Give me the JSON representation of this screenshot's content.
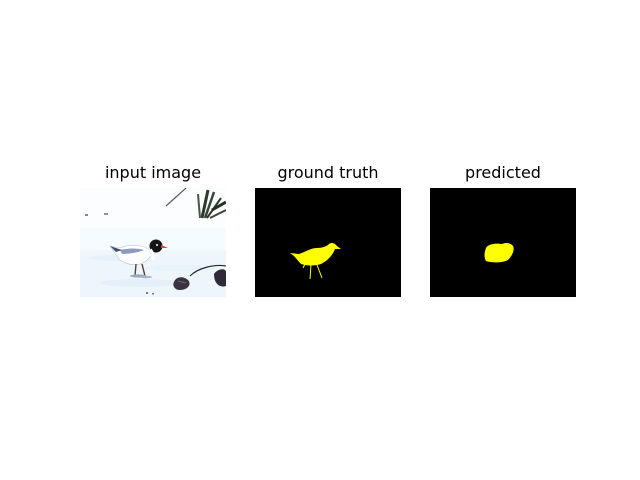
{
  "panels": [
    {
      "title": "input image"
    },
    {
      "title": "ground truth"
    },
    {
      "title": "predicted"
    }
  ],
  "colors": {
    "mask_background": "#000000",
    "mask_foreground": "#ffff00",
    "figure_background": "#ffffff"
  }
}
